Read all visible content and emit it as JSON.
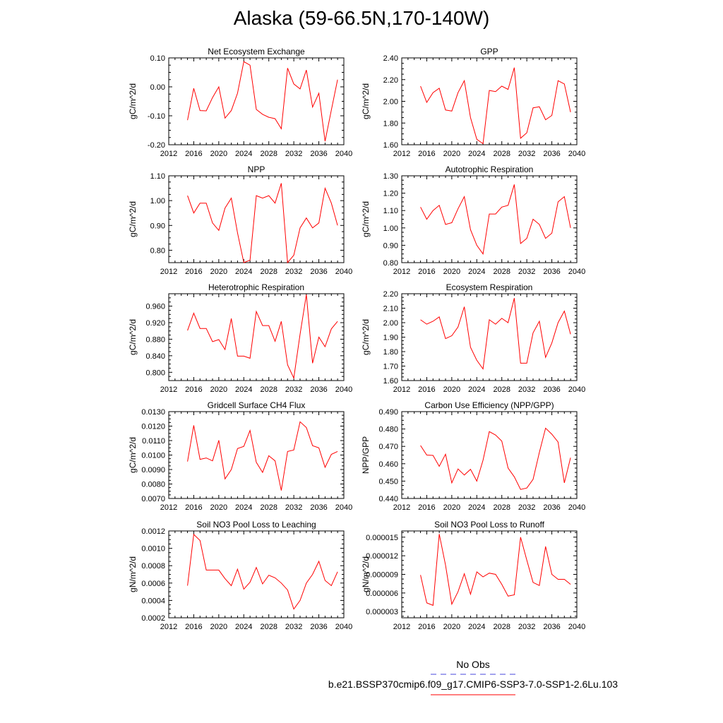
{
  "title": "Alaska (59-66.5N,170-140W)",
  "legend": {
    "items": [
      {
        "label": "No Obs",
        "color": "#4444dd",
        "dash": true
      },
      {
        "label": "b.e21.BSSP370cmip6.f09_g17.CMIP6-SSP3-7.0-SSP1-2.6Lu.103",
        "color": "#ff0000",
        "dash": false
      }
    ]
  },
  "colors": {
    "series": "#ff0000",
    "axis": "#000000"
  },
  "chart_data": [
    {
      "type": "line",
      "title": "Net Ecosystem Exchange",
      "ylabel": "gC/m^2/d",
      "xlim": [
        2012,
        2040
      ],
      "xticks": [
        "2012",
        "2016",
        "2020",
        "2024",
        "2028",
        "2032",
        "2036",
        "2040"
      ],
      "ylim": [
        -0.2,
        0.1
      ],
      "yticks": [
        "-0.20",
        "-0.10",
        "0.00",
        "0.10"
      ],
      "x": [
        2015,
        2016,
        2017,
        2018,
        2019,
        2020,
        2021,
        2022,
        2023,
        2024,
        2025,
        2026,
        2027,
        2028,
        2029,
        2030,
        2031,
        2032,
        2033,
        2034,
        2035,
        2036,
        2037,
        2038,
        2039
      ],
      "y": [
        -0.115,
        -0.005,
        -0.082,
        -0.083,
        -0.037,
        0.0,
        -0.108,
        -0.082,
        -0.022,
        0.087,
        0.075,
        -0.078,
        -0.095,
        -0.105,
        -0.11,
        -0.145,
        0.065,
        0.01,
        -0.007,
        0.058,
        -0.07,
        -0.022,
        -0.188,
        -0.08,
        0.025
      ]
    },
    {
      "type": "line",
      "title": "GPP",
      "ylabel": "gC/m^2/d",
      "xlim": [
        2012,
        2040
      ],
      "xticks": [
        "2012",
        "2016",
        "2020",
        "2024",
        "2028",
        "2032",
        "2036",
        "2040"
      ],
      "ylim": [
        1.6,
        2.4
      ],
      "yticks": [
        "1.60",
        "1.80",
        "2.00",
        "2.20",
        "2.40"
      ],
      "x": [
        2015,
        2016,
        2017,
        2018,
        2019,
        2020,
        2021,
        2022,
        2023,
        2024,
        2025,
        2026,
        2027,
        2028,
        2029,
        2030,
        2031,
        2032,
        2033,
        2034,
        2035,
        2036,
        2037,
        2038,
        2039
      ],
      "y": [
        2.14,
        1.99,
        2.08,
        2.12,
        1.92,
        1.91,
        2.08,
        2.19,
        1.85,
        1.65,
        1.61,
        2.1,
        2.09,
        2.14,
        2.11,
        2.31,
        1.66,
        1.71,
        1.94,
        1.95,
        1.83,
        1.87,
        2.19,
        2.16,
        1.9
      ]
    },
    {
      "type": "line",
      "title": "NPP",
      "ylabel": "gC/m^2/d",
      "xlim": [
        2012,
        2040
      ],
      "xticks": [
        "2012",
        "2016",
        "2020",
        "2024",
        "2028",
        "2032",
        "2036",
        "2040"
      ],
      "ylim": [
        0.75,
        1.1
      ],
      "yticks": [
        "0.80",
        "0.90",
        "1.00",
        "1.10"
      ],
      "x": [
        2015,
        2016,
        2017,
        2018,
        2019,
        2020,
        2021,
        2022,
        2023,
        2024,
        2025,
        2026,
        2027,
        2028,
        2029,
        2030,
        2031,
        2032,
        2033,
        2034,
        2035,
        2036,
        2037,
        2038,
        2039
      ],
      "y": [
        1.02,
        0.95,
        0.99,
        0.99,
        0.91,
        0.88,
        0.97,
        1.01,
        0.87,
        0.75,
        0.76,
        1.02,
        1.01,
        1.02,
        0.99,
        1.07,
        0.75,
        0.78,
        0.89,
        0.93,
        0.89,
        0.91,
        1.05,
        0.99,
        0.9
      ]
    },
    {
      "type": "line",
      "title": "Autotrophic Respiration",
      "ylabel": "gC/m^2/d",
      "xlim": [
        2012,
        2040
      ],
      "xticks": [
        "2012",
        "2016",
        "2020",
        "2024",
        "2028",
        "2032",
        "2036",
        "2040"
      ],
      "ylim": [
        0.8,
        1.3
      ],
      "yticks": [
        "0.80",
        "0.90",
        "1.00",
        "1.10",
        "1.20",
        "1.30"
      ],
      "x": [
        2015,
        2016,
        2017,
        2018,
        2019,
        2020,
        2021,
        2022,
        2023,
        2024,
        2025,
        2026,
        2027,
        2028,
        2029,
        2030,
        2031,
        2032,
        2033,
        2034,
        2035,
        2036,
        2037,
        2038,
        2039
      ],
      "y": [
        1.12,
        1.05,
        1.1,
        1.13,
        1.02,
        1.03,
        1.11,
        1.18,
        0.99,
        0.9,
        0.85,
        1.08,
        1.08,
        1.12,
        1.13,
        1.25,
        0.91,
        0.94,
        1.05,
        1.02,
        0.94,
        0.97,
        1.15,
        1.18,
        1.0
      ]
    },
    {
      "type": "line",
      "title": "Heterotrophic Respiration",
      "ylabel": "gC/m^2/d",
      "xlim": [
        2012,
        2040
      ],
      "xticks": [
        "2012",
        "2016",
        "2020",
        "2024",
        "2028",
        "2032",
        "2036",
        "2040"
      ],
      "ylim": [
        0.78,
        0.99
      ],
      "yticks": [
        "0.800",
        "0.840",
        "0.880",
        "0.920",
        "0.960"
      ],
      "x": [
        2015,
        2016,
        2017,
        2018,
        2019,
        2020,
        2021,
        2022,
        2023,
        2024,
        2025,
        2026,
        2027,
        2028,
        2029,
        2030,
        2031,
        2032,
        2033,
        2034,
        2035,
        2036,
        2037,
        2038,
        2039
      ],
      "y": [
        0.901,
        0.943,
        0.906,
        0.906,
        0.874,
        0.879,
        0.855,
        0.93,
        0.839,
        0.839,
        0.834,
        0.947,
        0.913,
        0.913,
        0.875,
        0.923,
        0.818,
        0.786,
        0.892,
        0.988,
        0.822,
        0.885,
        0.862,
        0.905,
        0.923
      ]
    },
    {
      "type": "line",
      "title": "Ecosystem Respiration",
      "ylabel": "gC/m^2/d",
      "xlim": [
        2012,
        2040
      ],
      "xticks": [
        "2012",
        "2016",
        "2020",
        "2024",
        "2028",
        "2032",
        "2036",
        "2040"
      ],
      "ylim": [
        1.6,
        2.2
      ],
      "yticks": [
        "1.60",
        "1.70",
        "1.80",
        "1.90",
        "2.00",
        "2.10",
        "2.20"
      ],
      "x": [
        2015,
        2016,
        2017,
        2018,
        2019,
        2020,
        2021,
        2022,
        2023,
        2024,
        2025,
        2026,
        2027,
        2028,
        2029,
        2030,
        2031,
        2032,
        2033,
        2034,
        2035,
        2036,
        2037,
        2038,
        2039
      ],
      "y": [
        2.02,
        1.99,
        2.01,
        2.04,
        1.89,
        1.91,
        1.97,
        2.11,
        1.83,
        1.74,
        1.68,
        2.02,
        1.99,
        2.03,
        2.0,
        2.17,
        1.72,
        1.72,
        1.93,
        2.01,
        1.76,
        1.86,
        2.0,
        2.08,
        1.92
      ]
    },
    {
      "type": "line",
      "title": "Gridcell Surface CH4 Flux",
      "ylabel": "gC/m^2/d",
      "xlim": [
        2012,
        2040
      ],
      "xticks": [
        "2012",
        "2016",
        "2020",
        "2024",
        "2028",
        "2032",
        "2036",
        "2040"
      ],
      "ylim": [
        0.007,
        0.013
      ],
      "yticks": [
        "0.0070",
        "0.0080",
        "0.0090",
        "0.0100",
        "0.0110",
        "0.0120",
        "0.0130"
      ],
      "x": [
        2015,
        2016,
        2017,
        2018,
        2019,
        2020,
        2021,
        2022,
        2023,
        2024,
        2025,
        2026,
        2027,
        2028,
        2029,
        2030,
        2031,
        2032,
        2033,
        2034,
        2035,
        2036,
        2037,
        2038,
        2039
      ],
      "y": [
        0.00955,
        0.01205,
        0.0097,
        0.0098,
        0.0096,
        0.01102,
        0.00835,
        0.009,
        0.01045,
        0.0106,
        0.0117,
        0.0095,
        0.0088,
        0.00995,
        0.0096,
        0.00755,
        0.01025,
        0.01035,
        0.0123,
        0.0119,
        0.01065,
        0.0105,
        0.00915,
        0.01005,
        0.01025
      ]
    },
    {
      "type": "line",
      "title": "Carbon Use Efficiency (NPP/GPP)",
      "ylabel": "NPP/GPP",
      "xlim": [
        2012,
        2040
      ],
      "xticks": [
        "2012",
        "2016",
        "2020",
        "2024",
        "2028",
        "2032",
        "2036",
        "2040"
      ],
      "ylim": [
        0.44,
        0.49
      ],
      "yticks": [
        "0.440",
        "0.450",
        "0.460",
        "0.470",
        "0.480",
        "0.490"
      ],
      "x": [
        2015,
        2016,
        2017,
        2018,
        2019,
        2020,
        2021,
        2022,
        2023,
        2024,
        2025,
        2026,
        2027,
        2028,
        2029,
        2030,
        2031,
        2032,
        2033,
        2034,
        2035,
        2036,
        2037,
        2038,
        2039
      ],
      "y": [
        0.4705,
        0.465,
        0.4648,
        0.4585,
        0.4655,
        0.449,
        0.457,
        0.4535,
        0.4568,
        0.45,
        0.462,
        0.4785,
        0.4765,
        0.473,
        0.4575,
        0.4525,
        0.4452,
        0.446,
        0.451,
        0.4665,
        0.4805,
        0.477,
        0.4725,
        0.449,
        0.4635
      ]
    },
    {
      "type": "line",
      "title": "Soil NO3 Pool Loss to Leaching",
      "ylabel": "gN/m^2/d",
      "xlim": [
        2012,
        2040
      ],
      "xticks": [
        "2012",
        "2016",
        "2020",
        "2024",
        "2028",
        "2032",
        "2036",
        "2040"
      ],
      "ylim": [
        0.0002,
        0.0012
      ],
      "yticks": [
        "0.0002",
        "0.0004",
        "0.0006",
        "0.0008",
        "0.0010",
        "0.0012"
      ],
      "x": [
        2015,
        2016,
        2017,
        2018,
        2019,
        2020,
        2021,
        2022,
        2023,
        2024,
        2025,
        2026,
        2027,
        2028,
        2029,
        2030,
        2031,
        2032,
        2033,
        2034,
        2035,
        2036,
        2037,
        2038,
        2039
      ],
      "y": [
        0.00057,
        0.00116,
        0.00109,
        0.00075,
        0.00075,
        0.00075,
        0.00065,
        0.00057,
        0.00076,
        0.00053,
        0.00061,
        0.00078,
        0.00059,
        0.00069,
        0.00066,
        0.0006,
        0.00052,
        0.0003,
        0.0004,
        0.0006,
        0.0007,
        0.00085,
        0.00063,
        0.00057,
        0.00073
      ]
    },
    {
      "type": "line",
      "title": "Soil NO3 Pool Loss to Runoff",
      "ylabel": "gN/m^2/d",
      "xlim": [
        2012,
        2040
      ],
      "xticks": [
        "2012",
        "2016",
        "2020",
        "2024",
        "2028",
        "2032",
        "2036",
        "2040"
      ],
      "ylim": [
        2e-06,
        1.6e-05
      ],
      "yticks": [
        "0.000003",
        "0.000006",
        "0.000009",
        "0.000012",
        "0.000015"
      ],
      "x": [
        2015,
        2016,
        2017,
        2018,
        2019,
        2020,
        2021,
        2022,
        2023,
        2024,
        2025,
        2026,
        2027,
        2028,
        2029,
        2030,
        2031,
        2032,
        2033,
        2034,
        2035,
        2036,
        2037,
        2038,
        2039
      ],
      "y": [
        8.9e-06,
        4.4e-06,
        4e-06,
        1.55e-05,
        1.05e-05,
        4.2e-06,
        6.2e-06,
        9.1e-06,
        5.8e-06,
        9.4e-06,
        8.6e-06,
        9.2e-06,
        9e-06,
        7.4e-06,
        5.5e-06,
        5.7e-06,
        1.5e-05,
        1.13e-05,
        7.7e-06,
        7.2e-06,
        1.35e-05,
        9e-06,
        8.2e-06,
        8.2e-06,
        7.4e-06
      ]
    }
  ]
}
